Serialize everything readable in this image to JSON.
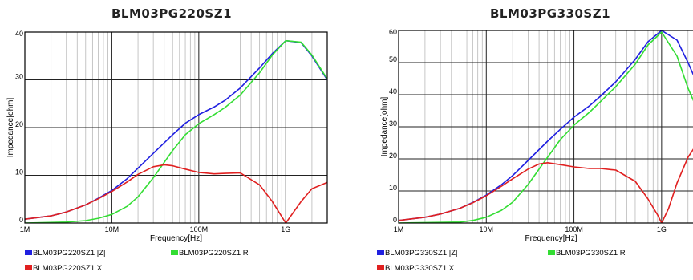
{
  "chart_data": [
    {
      "type": "line",
      "title": "BLM03PG220SZ1",
      "xlabel": "Frequency[Hz]",
      "ylabel": "Impedance[ohm]",
      "xscale": "log",
      "xlim": [
        1000000,
        3000000000
      ],
      "ylim": [
        0,
        40
      ],
      "yticks": [
        0,
        10,
        20,
        30,
        40
      ],
      "xticks": [
        {
          "value": 1000000,
          "label": "1M"
        },
        {
          "value": 10000000,
          "label": "10M"
        },
        {
          "value": 100000000,
          "label": "100M"
        },
        {
          "value": 1000000000,
          "label": "1G"
        }
      ],
      "grid": true,
      "legend_position": "below",
      "series": [
        {
          "name": "BLM03PG220SZ1 |Z|",
          "color": "#2020e0",
          "x": [
            1000000,
            2000000,
            3000000,
            5000000,
            7000000,
            10000000,
            15000000,
            20000000,
            30000000,
            50000000,
            70000000,
            100000000,
            150000000,
            200000000,
            300000000,
            500000000,
            700000000,
            1000000000,
            1500000000,
            2000000000,
            3000000000
          ],
          "y": [
            0.8,
            1.5,
            2.3,
            3.8,
            5.2,
            6.8,
            9.3,
            11.5,
            14.6,
            18.5,
            20.9,
            22.7,
            24.3,
            25.7,
            28.3,
            32.5,
            35.5,
            38.2,
            37.8,
            35.0,
            30.0
          ]
        },
        {
          "name": "BLM03PG220SZ1 R",
          "color": "#33dd33",
          "x": [
            1000000,
            3000000,
            5000000,
            7000000,
            10000000,
            15000000,
            20000000,
            30000000,
            50000000,
            70000000,
            100000000,
            150000000,
            200000000,
            300000000,
            500000000,
            700000000,
            1000000000,
            1500000000,
            2000000000,
            3000000000
          ],
          "y": [
            0,
            0.2,
            0.5,
            1.0,
            1.8,
            3.5,
            5.5,
            9.5,
            15.2,
            18.5,
            20.8,
            22.7,
            24.2,
            26.8,
            31.5,
            35.2,
            38.2,
            37.9,
            35.2,
            30.2
          ]
        },
        {
          "name": "BLM03PG220SZ1 X",
          "color": "#e02020",
          "x": [
            1000000,
            2000000,
            3000000,
            5000000,
            7000000,
            10000000,
            15000000,
            20000000,
            30000000,
            40000000,
            50000000,
            70000000,
            100000000,
            150000000,
            200000000,
            300000000,
            500000000,
            700000000,
            1000000000,
            1500000000,
            2000000000,
            3000000000
          ],
          "y": [
            0.8,
            1.5,
            2.3,
            3.8,
            5.1,
            6.6,
            8.6,
            10.2,
            11.8,
            12.2,
            12.0,
            11.3,
            10.6,
            10.3,
            10.4,
            10.5,
            8.0,
            4.5,
            0,
            4.5,
            7.2,
            8.5
          ]
        }
      ]
    },
    {
      "type": "line",
      "title": "BLM03PG330SZ1",
      "xlabel": "Frequency[Hz]",
      "ylabel": "Impedance[ohm]",
      "xscale": "log",
      "xlim": [
        1000000,
        3000000000
      ],
      "ylim": [
        0,
        60
      ],
      "yticks": [
        0,
        10,
        20,
        30,
        40,
        50,
        60
      ],
      "xticks": [
        {
          "value": 1000000,
          "label": "1M"
        },
        {
          "value": 10000000,
          "label": "10M"
        },
        {
          "value": 100000000,
          "label": "100M"
        },
        {
          "value": 1000000000,
          "label": "1G"
        }
      ],
      "grid": true,
      "legend_position": "below",
      "series": [
        {
          "name": "BLM03PG330SZ1 |Z|",
          "color": "#2020e0",
          "x": [
            1000000,
            2000000,
            3000000,
            5000000,
            7000000,
            10000000,
            15000000,
            20000000,
            30000000,
            50000000,
            70000000,
            100000000,
            150000000,
            200000000,
            300000000,
            500000000,
            700000000,
            1000000000,
            1500000000,
            2000000000,
            2500000000
          ],
          "y": [
            0.8,
            1.8,
            2.8,
            4.6,
            6.4,
            8.7,
            12.0,
            14.8,
            19.5,
            25.5,
            29.2,
            33.0,
            36.5,
            39.5,
            44.0,
            51.0,
            56.5,
            60.0,
            57.0,
            50.0,
            44.0
          ]
        },
        {
          "name": "BLM03PG330SZ1 R",
          "color": "#33dd33",
          "x": [
            1000000,
            5000000,
            7000000,
            10000000,
            15000000,
            20000000,
            30000000,
            50000000,
            70000000,
            100000000,
            150000000,
            200000000,
            300000000,
            500000000,
            700000000,
            1000000000,
            1500000000,
            2000000000,
            2500000000
          ],
          "y": [
            0,
            0.3,
            0.8,
            1.8,
            4.0,
            6.5,
            12.0,
            20.5,
            26.0,
            30.5,
            34.5,
            37.8,
            42.5,
            49.5,
            55.5,
            59.5,
            52.0,
            42.0,
            36.0
          ]
        },
        {
          "name": "BLM03PG330SZ1 X",
          "color": "#e02020",
          "x": [
            1000000,
            2000000,
            3000000,
            5000000,
            7000000,
            10000000,
            15000000,
            20000000,
            30000000,
            40000000,
            50000000,
            70000000,
            100000000,
            150000000,
            200000000,
            300000000,
            500000000,
            700000000,
            900000000,
            1000000000,
            1200000000,
            1500000000,
            2000000000,
            2500000000
          ],
          "y": [
            0.8,
            1.8,
            2.8,
            4.6,
            6.3,
            8.5,
            11.5,
            13.8,
            16.8,
            18.4,
            18.8,
            18.2,
            17.5,
            17.0,
            17.0,
            16.5,
            13.0,
            7.5,
            2.5,
            0,
            4.5,
            12.5,
            20.5,
            24.5
          ]
        }
      ]
    }
  ]
}
